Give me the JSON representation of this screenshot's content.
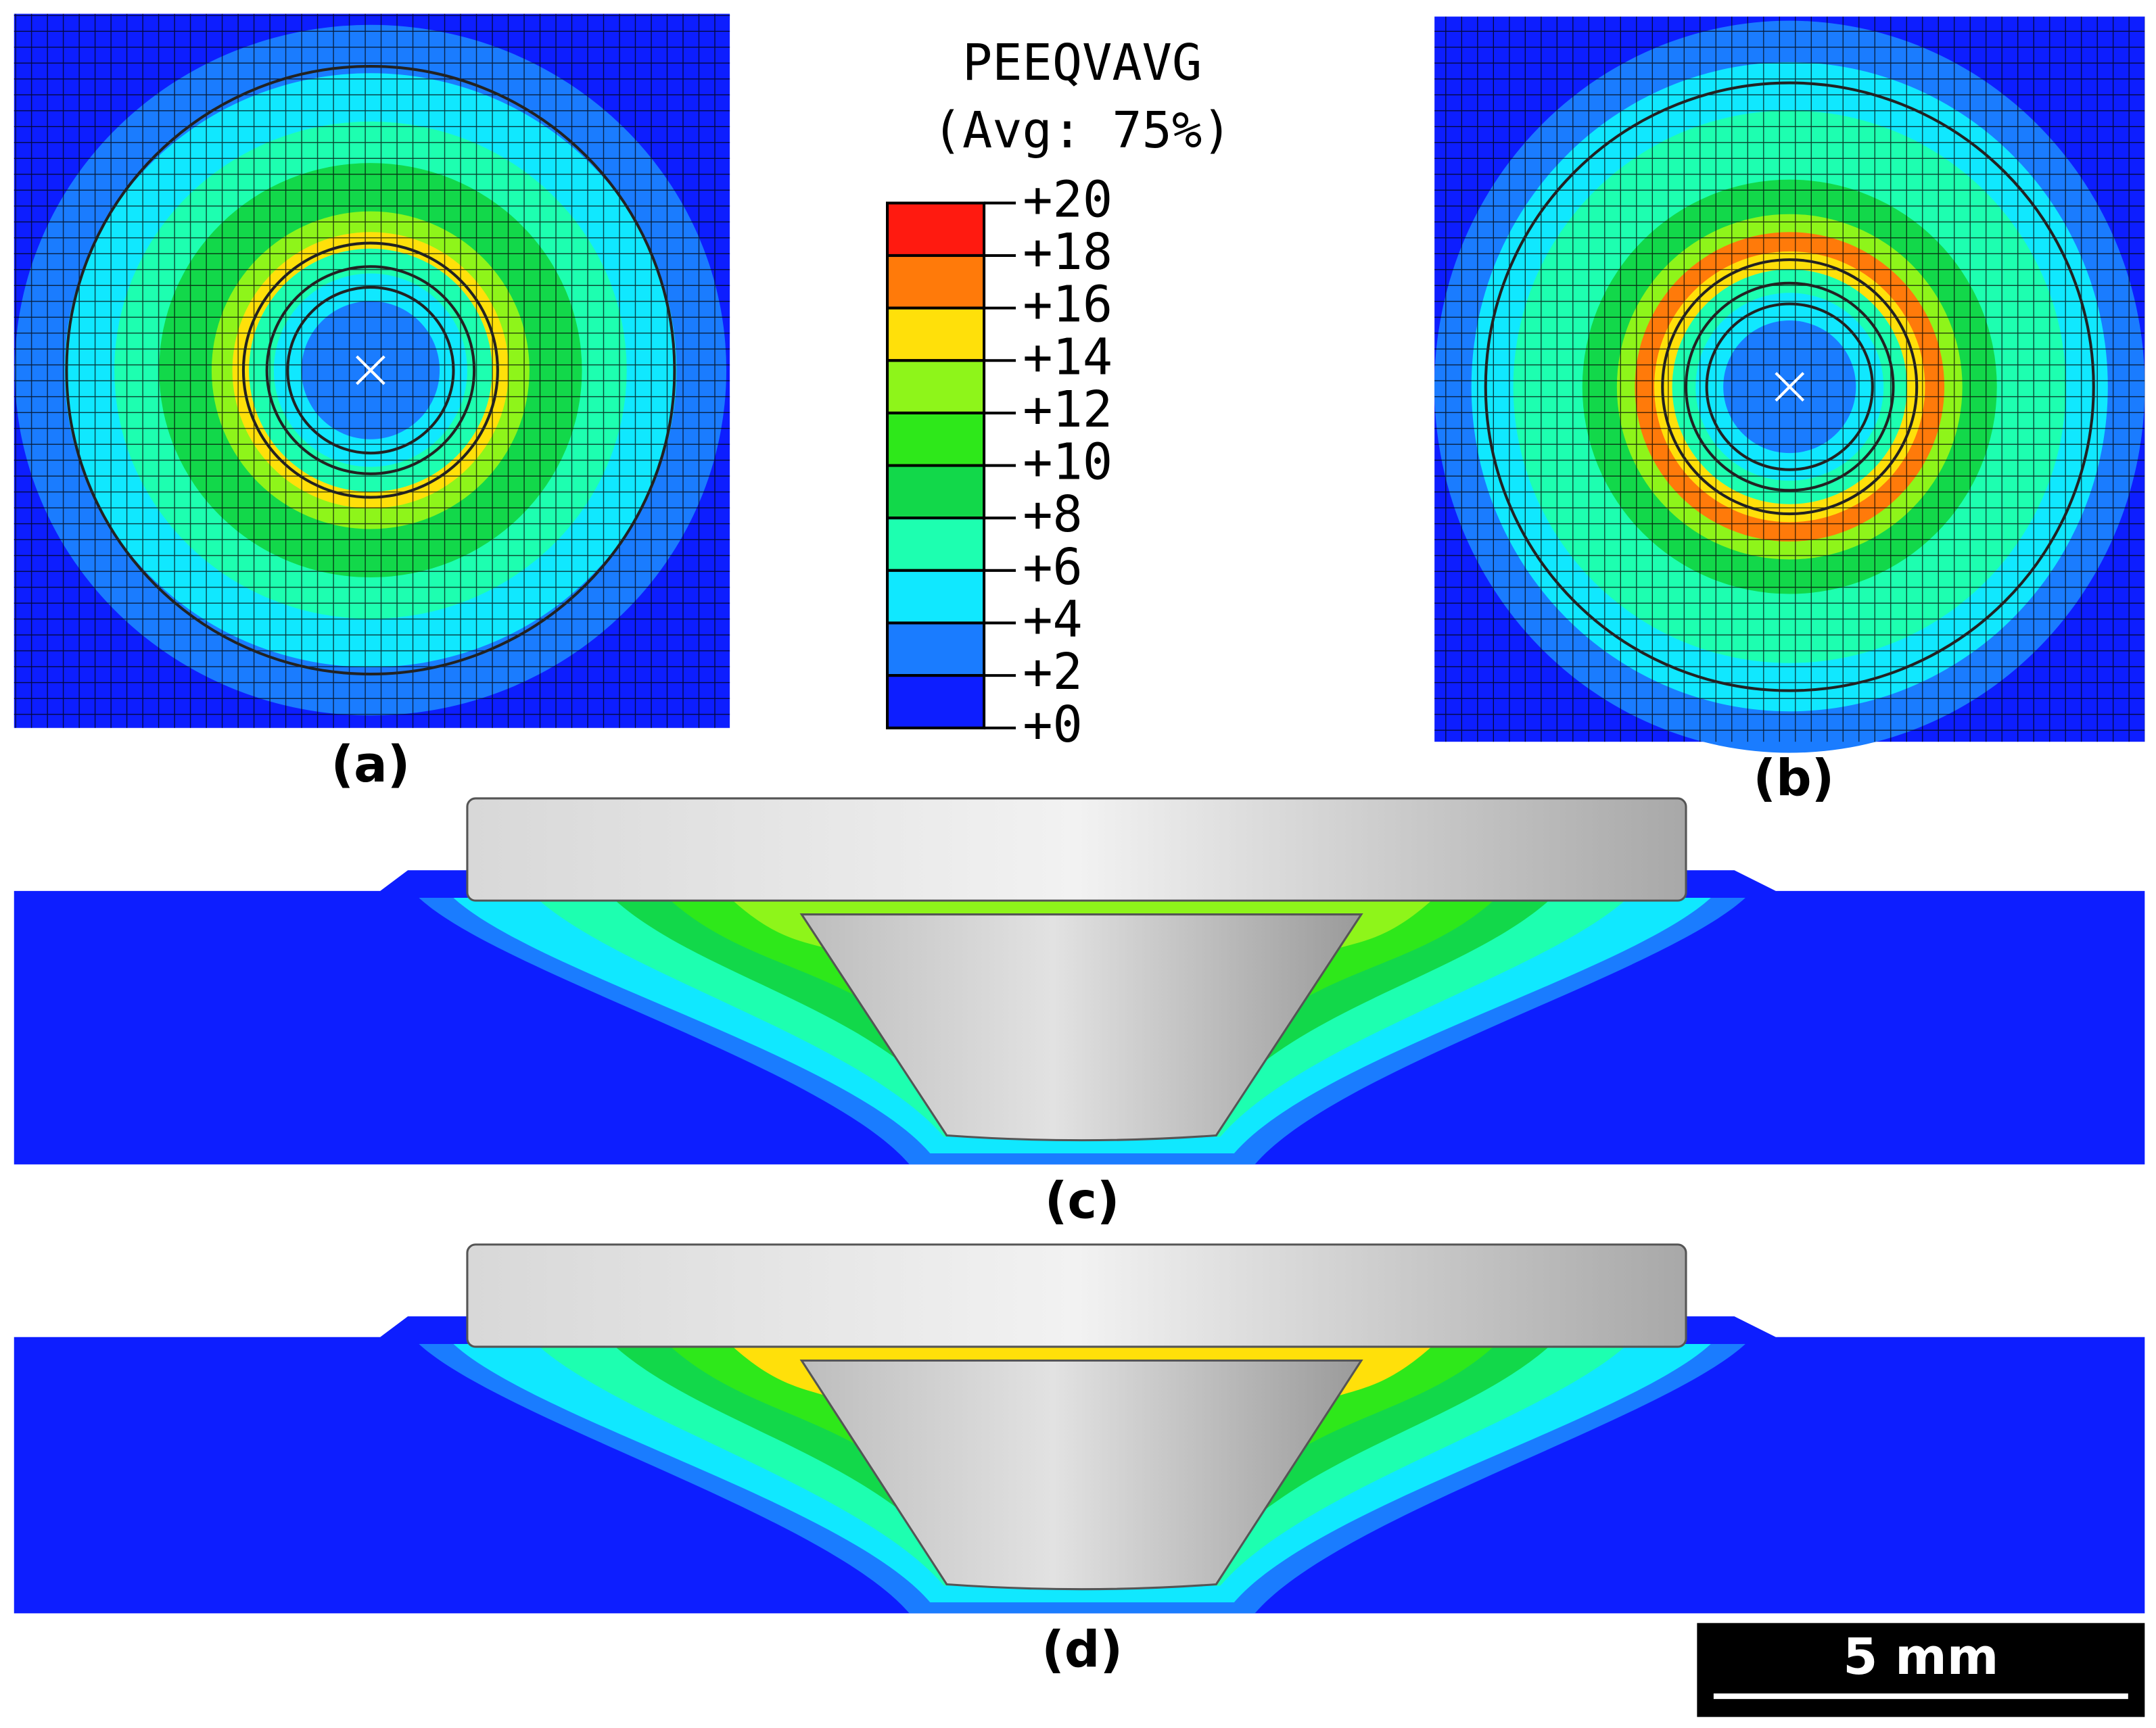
{
  "legend": {
    "title": "PEEQVAVG",
    "subtitle": "(Avg: 75%)",
    "labels": [
      "+20",
      "+18",
      "+16",
      "+14",
      "+12",
      "+10",
      "+8",
      "+6",
      "+4",
      "+2",
      "+0"
    ],
    "colors": [
      "#ff1a10",
      "#ff7a0a",
      "#ffe00a",
      "#8ef51a",
      "#2ee81a",
      "#12d84a",
      "#1dffb0",
      "#10e8ff",
      "#1a7cff",
      "#0d1eff"
    ]
  },
  "panels": {
    "a": "(a)",
    "b": "(b)",
    "c": "(c)",
    "d": "(d)"
  },
  "scale_bar": "5 mm"
}
